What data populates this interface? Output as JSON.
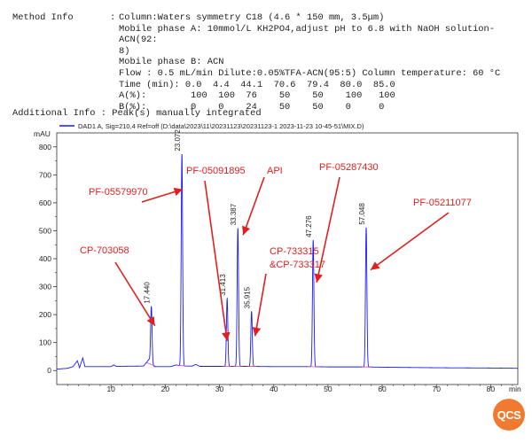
{
  "method_info": {
    "label": "Method Info",
    "sep": ":",
    "lines": [
      "Column:Waters symmetry C18 (4.6 * 150 mm, 3.5μm)",
      "Mobile phase A: 10mmol/L KH2PO4,adjust pH to 6.8 with NaOH solution-ACN(92:",
      "8)",
      "Mobile phase B: ACN",
      "Flow : 0.5 mL/min Dilute:0.05%TFA-ACN(95:5) Column temperature: 60 °C",
      "Time (min): 0.0  4.4  44.1  70.6  79.4  80.0  85.0",
      "A(%):        100  100  76    50    50    100   100",
      "B(%):        0    0    24    50    50    0     0"
    ]
  },
  "additional_info": "Additional Info : Peak(s) manually integrated",
  "logo_text": "QCS",
  "chart_data": {
    "type": "line",
    "legend": "DAD1 A, Sig=210,4 Ref=off (D:\\data\\2023\\11\\20231123\\20231123-1 2023-11-23 10-45-51\\MIX.D)",
    "ylabel": "mAU",
    "xlabel": "min",
    "xlim": [
      0,
      85
    ],
    "ylim": [
      -50,
      850
    ],
    "xticks": [
      10,
      20,
      30,
      40,
      50,
      60,
      70,
      80
    ],
    "yticks": [
      0,
      100,
      200,
      300,
      400,
      500,
      600,
      700,
      800
    ],
    "baseline_points": [
      [
        0,
        5
      ],
      [
        2,
        8
      ],
      [
        3,
        14
      ],
      [
        3.8,
        35
      ],
      [
        4.2,
        10
      ],
      [
        4.8,
        45
      ],
      [
        5.2,
        14
      ],
      [
        7,
        14
      ],
      [
        10,
        14
      ],
      [
        10.5,
        20
      ],
      [
        11,
        15
      ],
      [
        16,
        16
      ],
      [
        17,
        40
      ],
      [
        18,
        14
      ],
      [
        21,
        14
      ],
      [
        22,
        20
      ],
      [
        23,
        16
      ],
      [
        25,
        16
      ],
      [
        25.6,
        22
      ],
      [
        26.4,
        15
      ],
      [
        30,
        15
      ],
      [
        35,
        15
      ],
      [
        40,
        14
      ],
      [
        47,
        14
      ],
      [
        50,
        13
      ],
      [
        57,
        13
      ],
      [
        60,
        12
      ],
      [
        70,
        10
      ],
      [
        80,
        9
      ],
      [
        85,
        8
      ]
    ],
    "peaks": [
      {
        "rt": 17.44,
        "label": "17.440",
        "height": 230
      },
      {
        "rt": 23.072,
        "label": "23.072",
        "height": 775
      },
      {
        "rt": 31.413,
        "label": "31.413",
        "height": 258
      },
      {
        "rt": 33.387,
        "label": "33.387",
        "height": 510
      },
      {
        "rt": 35.915,
        "label": "35.915",
        "height": 212
      },
      {
        "rt": 47.276,
        "label": "47.276",
        "height": 467
      },
      {
        "rt": 57.048,
        "label": "57.048",
        "height": 512
      }
    ],
    "annotations": [
      {
        "text": "CP-703058",
        "target_rt": 17.44
      },
      {
        "text": "PF-05579970",
        "target_rt": 23.072
      },
      {
        "text": "PF-05091895",
        "target_rt": 31.413
      },
      {
        "text": "API",
        "target_rt": 33.387
      },
      {
        "text": "CP-733315",
        "target_rt": 35.915
      },
      {
        "text": "&CP-733317",
        "target_rt": 35.915
      },
      {
        "text": "PF-05287430",
        "target_rt": 47.276
      },
      {
        "text": "PF-05211077",
        "target_rt": 57.048
      }
    ],
    "colors": {
      "signal": "#1a1aff",
      "annotation": "#e02020",
      "integration": "#d030d0"
    }
  }
}
